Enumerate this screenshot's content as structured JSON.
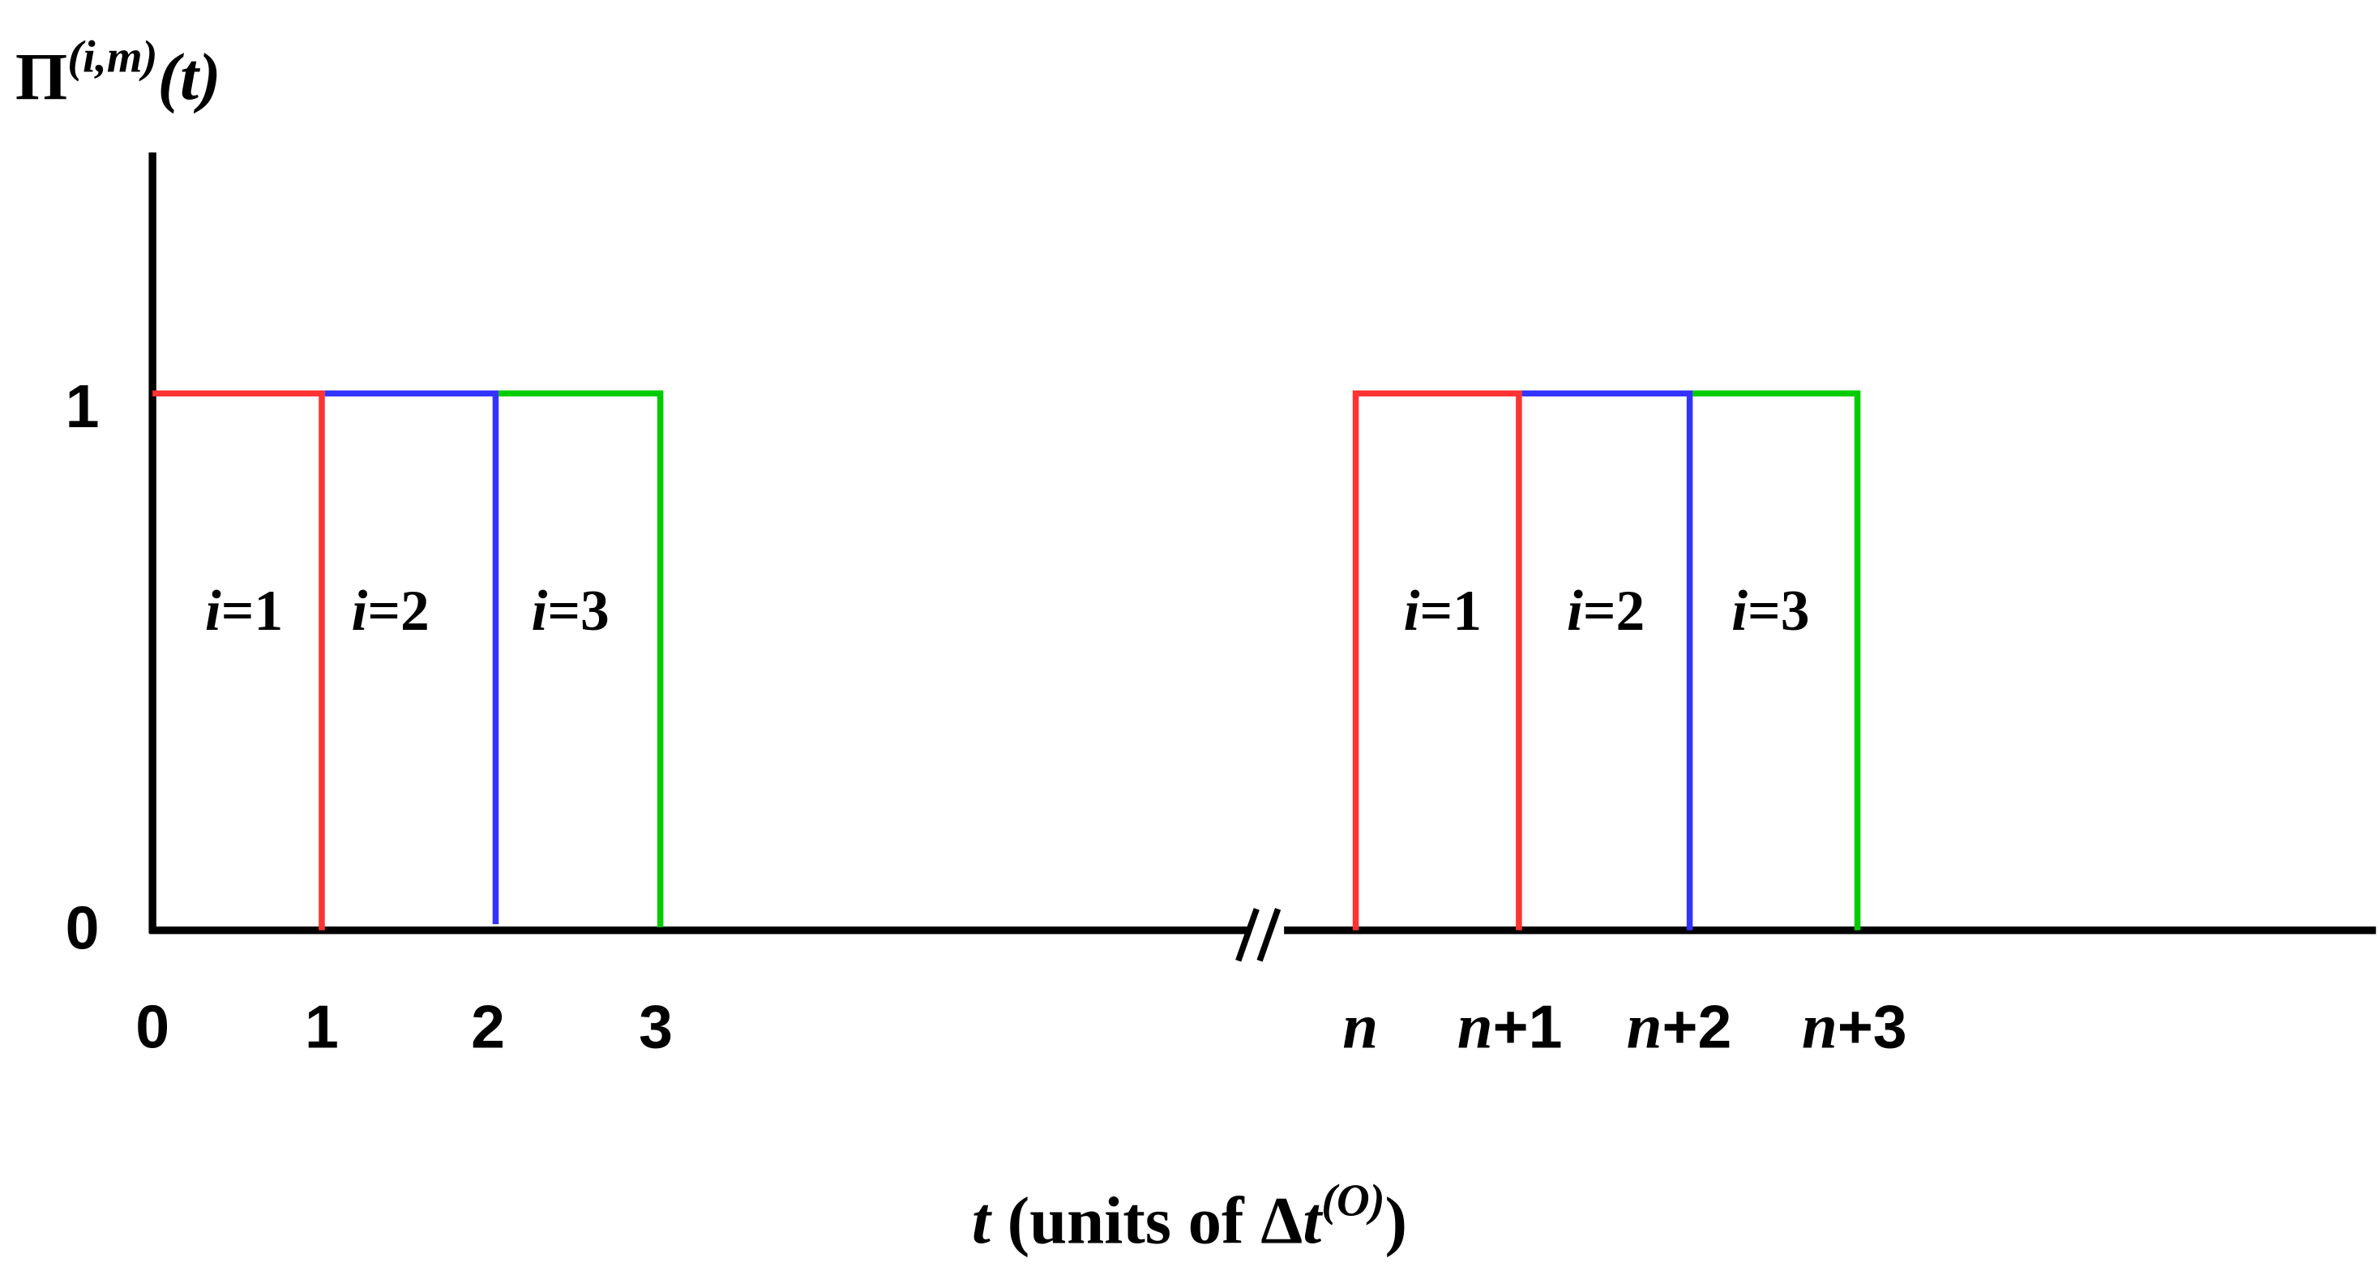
{
  "y_axis_label": {
    "symbol": "Π",
    "superscript": "(i,m)",
    "argument": "(t)"
  },
  "y_ticks": [
    "1",
    "0"
  ],
  "x_ticks_left": [
    "0",
    "1",
    "2",
    "3"
  ],
  "x_ticks_right": [
    {
      "var": "n",
      "suffix": ""
    },
    {
      "var": "n",
      "suffix": "+1"
    },
    {
      "var": "n",
      "suffix": "+2"
    },
    {
      "var": "n",
      "suffix": "+3"
    }
  ],
  "pulses_left": [
    {
      "var": "i",
      "rest": "=1"
    },
    {
      "var": "i",
      "rest": "=2"
    },
    {
      "var": "i",
      "rest": "=3"
    }
  ],
  "pulses_right": [
    {
      "var": "i",
      "rest": "=1"
    },
    {
      "var": "i",
      "rest": "=2"
    },
    {
      "var": "i",
      "rest": "=3"
    }
  ],
  "x_axis_title": {
    "var": "t",
    "text": " (units of Δ",
    "var2": "t",
    "superscript": "(O)",
    "close": ")"
  }
}
